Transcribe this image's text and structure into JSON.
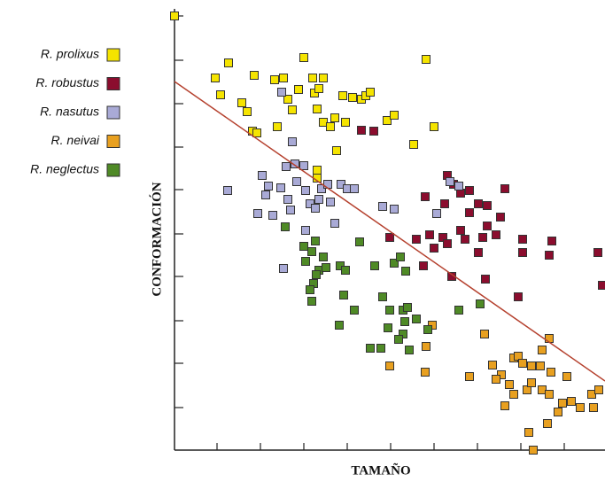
{
  "chart_data": {
    "type": "scatter",
    "x_label": "TAMAÑO",
    "y_label": "CONFORMACIÓN",
    "xlim": [
      0,
      486
    ],
    "ylim": [
      0,
      490
    ],
    "xticks": [
      48,
      97,
      146,
      195,
      244,
      293,
      342,
      391,
      440
    ],
    "yticks": [
      48,
      98,
      146,
      196,
      244,
      294,
      342,
      391,
      440,
      490
    ],
    "trend_line": {
      "color": "#b5412e",
      "x": [
        0,
        486
      ],
      "y": [
        416,
        78
      ]
    },
    "series": [
      {
        "name": "R. prolixus",
        "color": "#f5e400",
        "x": [
          0,
          46,
          61,
          52,
          90,
          76,
          82,
          88,
          93,
          113,
          123,
          116,
          128,
          133,
          140,
          146,
          156,
          158,
          163,
          168,
          161,
          168,
          176,
          181,
          190,
          193,
          201,
          211,
          216,
          221,
          240,
          248,
          270,
          293,
          284,
          161,
          183,
          161
        ],
        "y": [
          490,
          420,
          437,
          401,
          423,
          392,
          382,
          360,
          358,
          418,
          420,
          365,
          396,
          384,
          407,
          443,
          420,
          403,
          408,
          420,
          385,
          370,
          365,
          375,
          400,
          370,
          398,
          396,
          400,
          404,
          372,
          378,
          345,
          365,
          441,
          316,
          338,
          307
        ]
      },
      {
        "name": "R. robustus",
        "color": "#8b0d2e",
        "x": [
          211,
          225,
          308,
          315,
          283,
          305,
          323,
          333,
          343,
          353,
          373,
          368,
          353,
          363,
          333,
          323,
          303,
          288,
          273,
          293,
          308,
          328,
          348,
          393,
          426,
          343,
          423,
          393,
          281,
          313,
          351,
          388,
          478,
          483,
          243
        ],
        "y": [
          361,
          360,
          310,
          300,
          286,
          278,
          290,
          293,
          278,
          276,
          295,
          263,
          253,
          243,
          268,
          248,
          240,
          243,
          238,
          228,
          233,
          238,
          240,
          238,
          236,
          223,
          220,
          223,
          208,
          196,
          193,
          173,
          223,
          186,
          240
        ]
      },
      {
        "name": "R. nasutus",
        "color": "#a9aad6",
        "x": [
          60,
          99,
          106,
          103,
          94,
          111,
          120,
          128,
          131,
          126,
          136,
          146,
          138,
          148,
          153,
          159,
          166,
          173,
          176,
          188,
          195,
          203,
          181,
          148,
          133,
          121,
          123,
          235,
          248,
          296,
          311,
          321,
          163
        ],
        "y": [
          293,
          310,
          298,
          288,
          267,
          265,
          296,
          283,
          271,
          320,
          323,
          321,
          303,
          293,
          278,
          273,
          295,
          300,
          280,
          300,
          295,
          295,
          256,
          248,
          348,
          404,
          205,
          275,
          272,
          267,
          303,
          298,
          283
        ]
      },
      {
        "name": "R. neivai",
        "color": "#e8a020",
        "x": [
          350,
          359,
          369,
          383,
          388,
          393,
          403,
          413,
          423,
          415,
          425,
          378,
          383,
          398,
          403,
          415,
          423,
          438,
          448,
          471,
          479,
          443,
          473,
          458,
          433,
          421,
          373,
          400,
          405,
          283,
          284,
          243,
          291,
          333,
          363
        ],
        "y": [
          131,
          96,
          85,
          104,
          106,
          98,
          95,
          95,
          126,
          113,
          88,
          74,
          63,
          68,
          76,
          68,
          63,
          53,
          55,
          63,
          68,
          83,
          48,
          48,
          43,
          30,
          50,
          20,
          0,
          88,
          117,
          95,
          141,
          83,
          80
        ]
      },
      {
        "name": "R. neglectus",
        "color": "#4f8a26",
        "x": [
          125,
          146,
          159,
          155,
          148,
          168,
          163,
          157,
          153,
          160,
          171,
          187,
          191,
          203,
          186,
          209,
          226,
          248,
          255,
          261,
          235,
          243,
          258,
          263,
          260,
          258,
          233,
          241,
          221,
          253,
          273,
          286,
          321,
          345,
          265,
          193,
          155
        ],
        "y": [
          252,
          230,
          236,
          224,
          213,
          218,
          203,
          188,
          181,
          198,
          206,
          208,
          175,
          158,
          141,
          235,
          208,
          211,
          218,
          202,
          173,
          158,
          158,
          161,
          145,
          131,
          115,
          138,
          115,
          125,
          148,
          136,
          158,
          165,
          113,
          203,
          168
        ]
      }
    ]
  }
}
